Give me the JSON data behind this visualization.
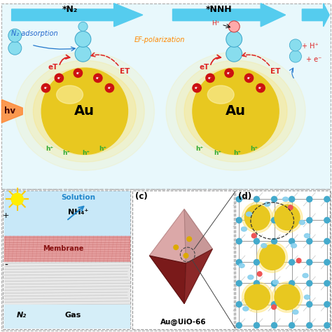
{
  "au_label": "Au",
  "text_star_n2": "*N₂",
  "text_star_nnh": "*NNH",
  "text_ef_polarization": "EF-polarization",
  "text_n2_adsorption": "N₂ adsorption",
  "text_eT": "eT",
  "text_ET": "ET",
  "text_hv": "hv",
  "text_hplus": "h⁺",
  "text_Hplus": "H⁺",
  "text_plus_hplus": "+ H⁺",
  "text_plus_eminus": "+ e⁻",
  "label_c": "(c)",
  "label_d": "(d)",
  "text_solution": "Solution",
  "text_nh4": "NH₄⁺",
  "text_membrane": "Membrane",
  "text_n2gas": "N₂",
  "text_gas": "Gas",
  "text_au_uio": "Au@UiO-66",
  "top_bg": "#e8f8fc",
  "bottom_bg": "#f5f5f5",
  "cyan_arrow": "#55ccee",
  "au_gold": "#e8c820",
  "au_glow1": "#fff5a0",
  "au_glow2": "#ffe060",
  "red_label": "#dd2222",
  "green_label": "#33aa33",
  "blue_label": "#2266cc",
  "orange_label": "#ff8800",
  "solution_color": "#c5e8f8",
  "membrane_top_color": "#e08080",
  "membrane_bot_color": "#c06060",
  "n2gas_color": "#daeef8",
  "mol_blue": "#88ddee",
  "mol_border": "#44aacc",
  "zr_color": "#44aacc",
  "grid_color": "#999999"
}
